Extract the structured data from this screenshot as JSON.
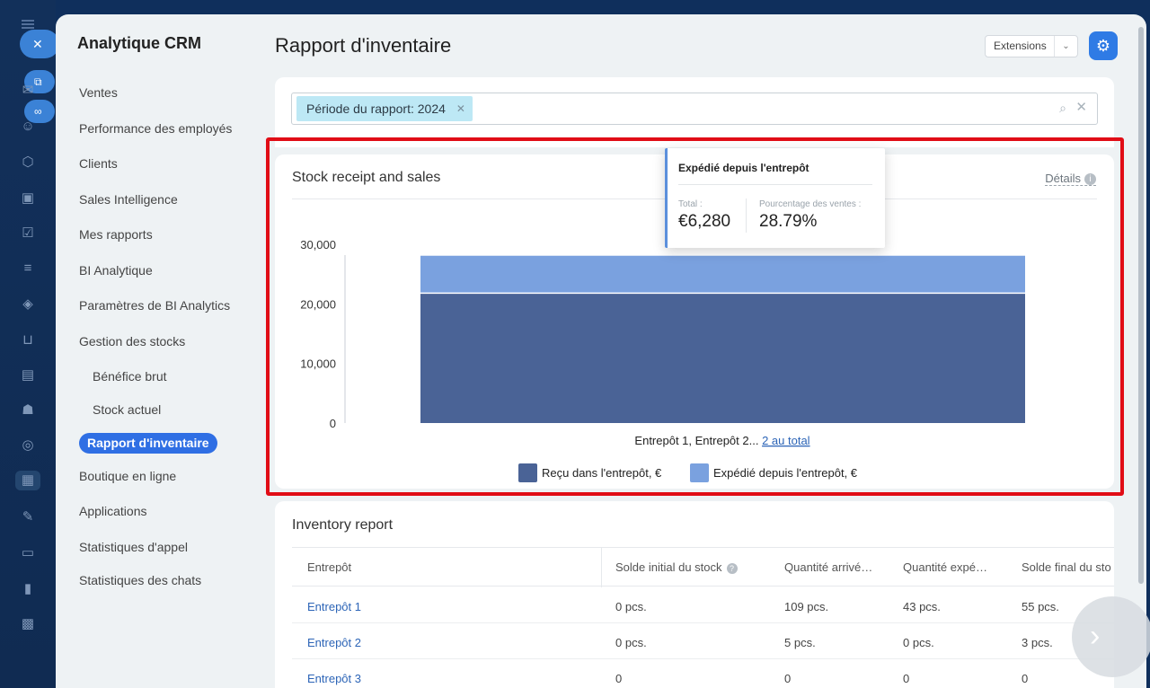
{
  "sidebar": {
    "title": "Analytique CRM",
    "items": [
      "Ventes",
      "Performance des employés",
      "Clients",
      "Sales Intelligence",
      "Mes rapports",
      "BI Analytique",
      "Paramètres de BI Analytics",
      "Gestion des stocks"
    ],
    "sub_items": [
      "Bénéfice brut",
      "Stock actuel"
    ],
    "active_item": "Rapport d'inventaire",
    "items_after": [
      "Boutique en ligne",
      "Applications",
      "Statistiques d'appel",
      "Statistiques des chats"
    ]
  },
  "header": {
    "title": "Rapport d'inventaire",
    "extensions_label": "Extensions"
  },
  "filter": {
    "chip_label": "Période du rapport: 2024"
  },
  "chart_card": {
    "title": "Stock receipt and sales",
    "details_label": "Détails",
    "x_label_text": "Entrepôt 1, Entrepôt 2...",
    "x_label_link": "2 au total"
  },
  "tooltip": {
    "title": "Expédié depuis l'entrepôt",
    "total_label": "Total :",
    "total_value": "€6,280",
    "percent_label": "Pourcentage des ventes :",
    "percent_value": "28.79%"
  },
  "chart_data": {
    "type": "bar",
    "stacked": true,
    "categories": [
      "Entrepôt 1, Entrepôt 2... 2 au total"
    ],
    "series": [
      {
        "name": "Reçu dans l'entrepôt, €",
        "values": [
          21800
        ],
        "color": "#4a6396"
      },
      {
        "name": "Expédié depuis l'entrepôt, €",
        "values": [
          6280
        ],
        "color": "#7aa1df"
      }
    ],
    "yticks": [
      "0",
      "10,000",
      "20,000",
      "30,000"
    ],
    "ylim": [
      0,
      30000
    ],
    "legend_position": "bottom"
  },
  "inventory": {
    "title": "Inventory report",
    "columns": [
      "Entrepôt",
      "Solde initial du stock",
      "Quantité arrivé…",
      "Quantité expé…",
      "Solde final du sto"
    ],
    "rows": [
      [
        "Entrepôt 1",
        "0 pcs.",
        "109 pcs.",
        "43 pcs.",
        "55 pcs."
      ],
      [
        "Entrepôt 2",
        "0 pcs.",
        "5 pcs.",
        "0 pcs.",
        "3 pcs."
      ],
      [
        "Entrepôt 3",
        "0",
        "0",
        "0",
        "0"
      ]
    ]
  },
  "icons": {
    "close": "close-icon",
    "settings": "gear-icon",
    "search": "search-icon",
    "next": "chevron-right-icon"
  }
}
